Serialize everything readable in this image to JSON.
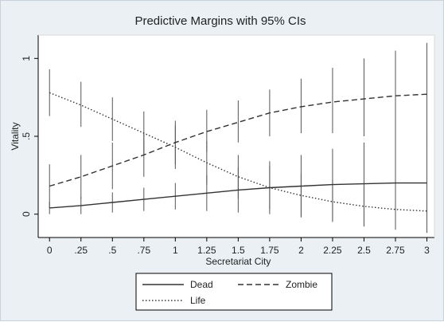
{
  "chart_data": {
    "type": "line",
    "title": "Predictive Margins with 95% CIs",
    "xlabel": "Secretariat City",
    "ylabel": "Vitality",
    "x": [
      0,
      0.25,
      0.5,
      0.75,
      1,
      1.25,
      1.5,
      1.75,
      2,
      2.25,
      2.5,
      2.75,
      3
    ],
    "x_tick_labels": [
      "0",
      ".25",
      ".5",
      ".75",
      "1",
      "1.25",
      "1.5",
      "1.75",
      "2",
      "2.25",
      "2.5",
      "2.75",
      "3"
    ],
    "y_ticks": [
      0,
      0.5,
      1
    ],
    "y_tick_labels": [
      "0",
      ".5",
      "1"
    ],
    "xlim": [
      0,
      3
    ],
    "ylim": [
      -0.15,
      1.15
    ],
    "grid": false,
    "legend_position": "bottom",
    "series": [
      {
        "name": "Dead",
        "line_style": "solid",
        "values": [
          0.04,
          0.055,
          0.075,
          0.095,
          0.115,
          0.135,
          0.155,
          0.17,
          0.18,
          0.19,
          0.195,
          0.2,
          0.2
        ],
        "ci_low": [
          0.0,
          0.0,
          0.01,
          0.02,
          0.03,
          0.02,
          0.01,
          0.0,
          -0.02,
          -0.04,
          -0.07,
          -0.09,
          -0.12
        ],
        "ci_high": [
          0.08,
          0.11,
          0.14,
          0.17,
          0.2,
          0.25,
          0.3,
          0.34,
          0.38,
          0.42,
          0.46,
          0.49,
          0.52
        ]
      },
      {
        "name": "Zombie",
        "line_style": "dashed",
        "values": [
          0.18,
          0.24,
          0.31,
          0.38,
          0.46,
          0.53,
          0.59,
          0.65,
          0.69,
          0.72,
          0.74,
          0.76,
          0.77
        ],
        "ci_low": [
          0.04,
          0.1,
          0.16,
          0.24,
          0.32,
          0.4,
          0.46,
          0.5,
          0.52,
          0.52,
          0.5,
          0.47,
          0.45
        ],
        "ci_high": [
          0.32,
          0.38,
          0.46,
          0.52,
          0.6,
          0.67,
          0.73,
          0.8,
          0.87,
          0.94,
          1.0,
          1.05,
          1.1
        ]
      },
      {
        "name": "Life",
        "line_style": "dotted",
        "values": [
          0.78,
          0.7,
          0.61,
          0.52,
          0.43,
          0.33,
          0.24,
          0.17,
          0.12,
          0.08,
          0.05,
          0.03,
          0.02
        ],
        "ci_low": [
          0.63,
          0.56,
          0.47,
          0.38,
          0.29,
          0.19,
          0.1,
          0.03,
          -0.02,
          -0.05,
          -0.08,
          -0.1,
          -0.12
        ],
        "ci_high": [
          0.93,
          0.85,
          0.75,
          0.66,
          0.57,
          0.47,
          0.38,
          0.31,
          0.26,
          0.22,
          0.18,
          0.16,
          0.16
        ]
      }
    ]
  },
  "colors": {
    "background": "#eaf0f4",
    "plot_area": "#ffffff",
    "line": "#333333",
    "ci_bar": "#555555",
    "axis": "#000000"
  }
}
